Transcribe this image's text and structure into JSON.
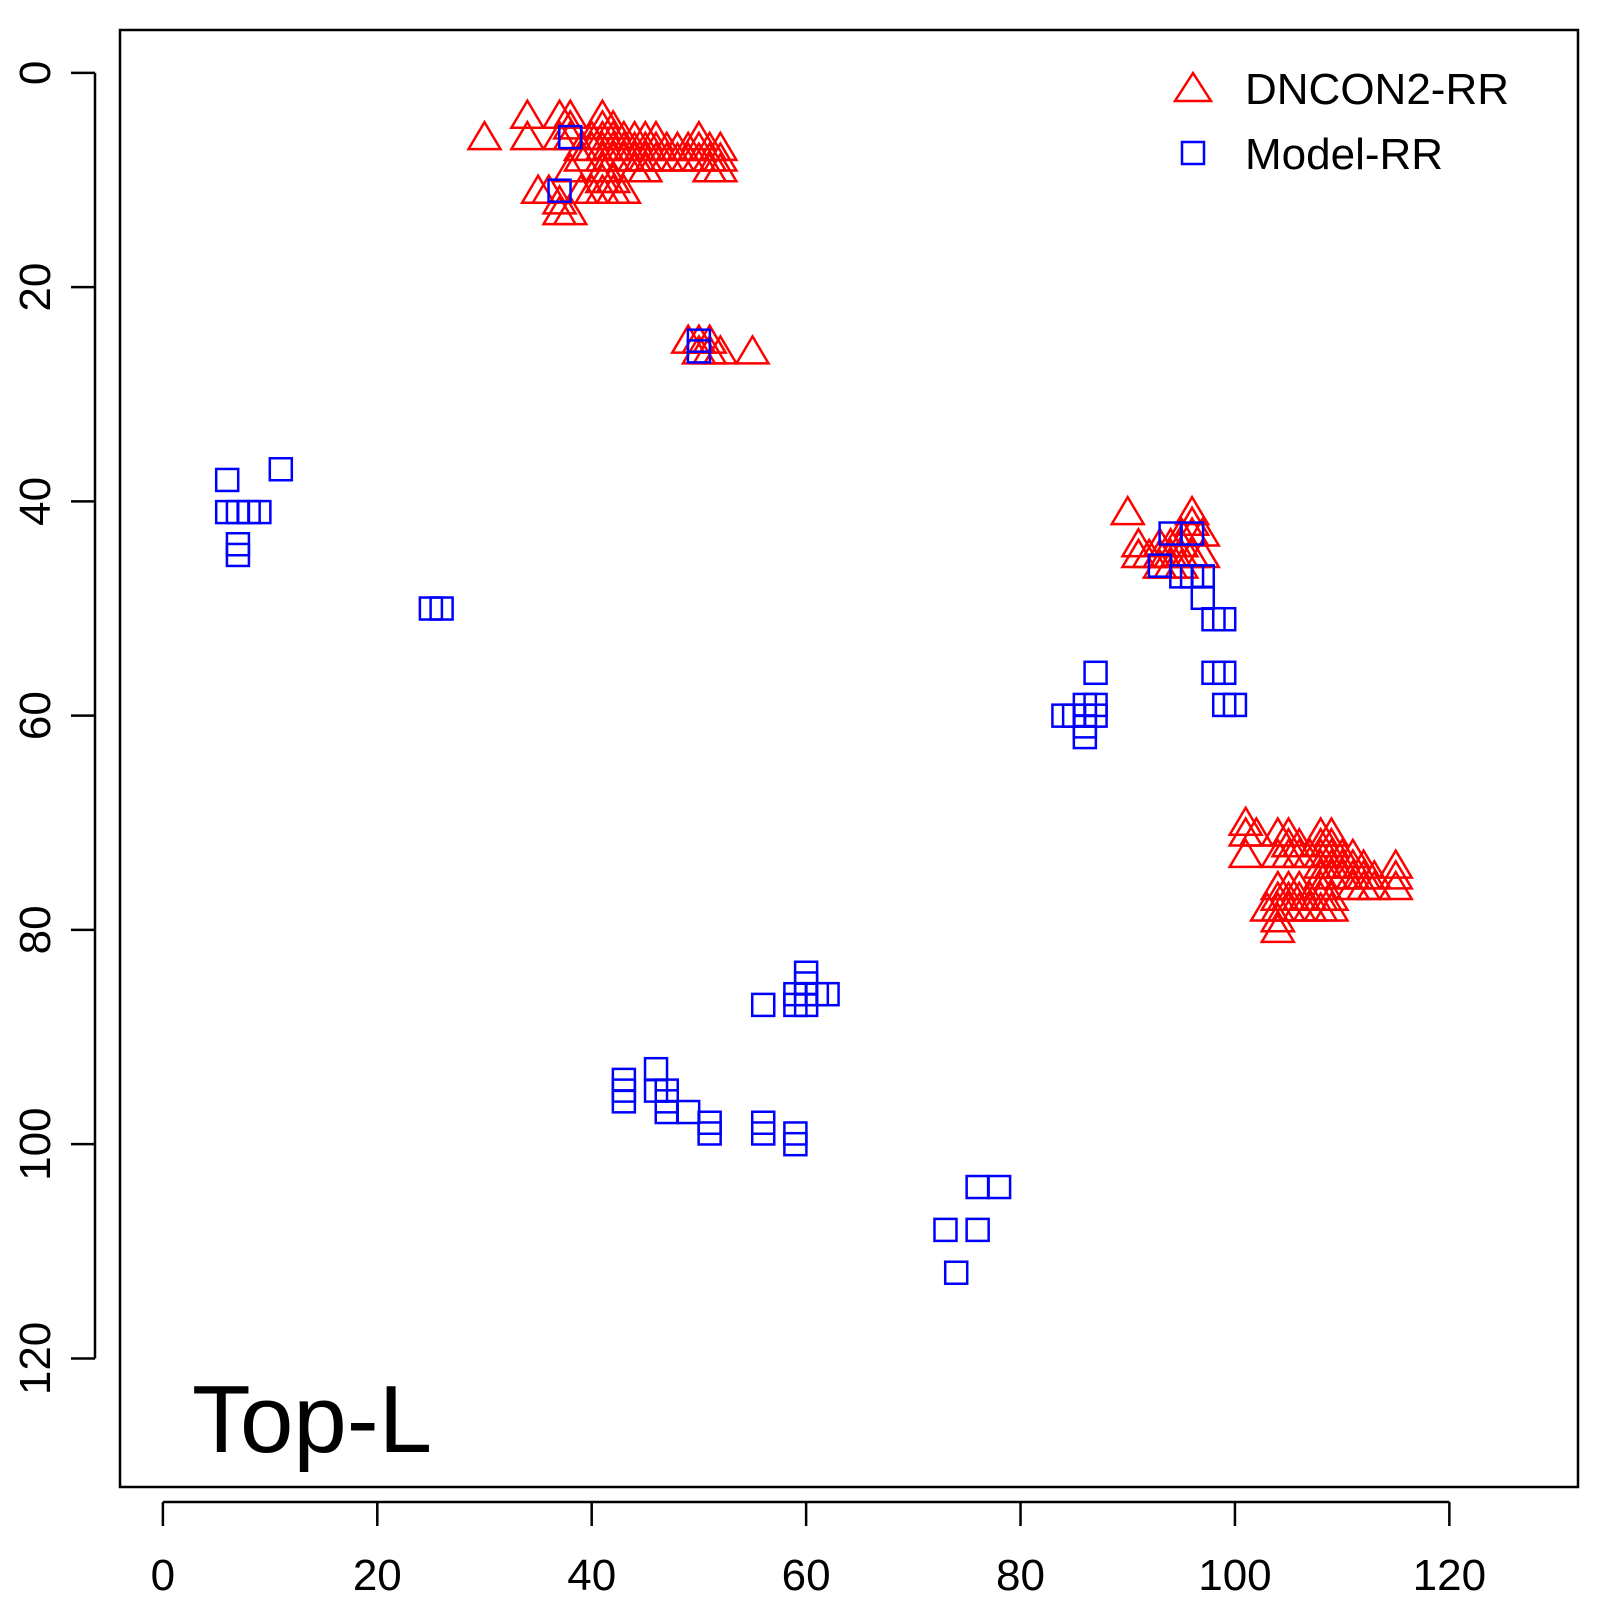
{
  "chart_data": {
    "type": "scatter",
    "panel_label": "Top-L",
    "x_axis": {
      "range": [
        -4,
        132
      ],
      "ticks": [
        0,
        20,
        40,
        60,
        80,
        100,
        120
      ],
      "tick_labels": [
        "0",
        "20",
        "40",
        "60",
        "80",
        "100",
        "120"
      ]
    },
    "y_axis": {
      "range": [
        -4,
        132
      ],
      "reversed": true,
      "ticks": [
        0,
        20,
        40,
        60,
        80,
        100,
        120
      ],
      "tick_labels": [
        "0",
        "20",
        "40",
        "60",
        "80",
        "100",
        "120"
      ]
    },
    "grid": false,
    "legend_position": "top-right",
    "series": [
      {
        "name": "DNCON2-RR",
        "marker": "triangle",
        "color": "#ff0000",
        "points": [
          [
            30,
            6
          ],
          [
            34,
            4
          ],
          [
            34,
            6
          ],
          [
            35,
            11
          ],
          [
            36,
            11
          ],
          [
            37,
            4
          ],
          [
            37,
            6
          ],
          [
            37,
            12
          ],
          [
            37,
            13
          ],
          [
            38,
            4
          ],
          [
            38,
            5
          ],
          [
            38,
            6
          ],
          [
            38,
            9
          ],
          [
            38,
            13
          ],
          [
            39,
            7
          ],
          [
            39,
            8
          ],
          [
            39,
            11
          ],
          [
            40,
            6
          ],
          [
            40,
            7
          ],
          [
            40,
            11
          ],
          [
            41,
            4
          ],
          [
            41,
            5
          ],
          [
            41,
            6
          ],
          [
            41,
            7
          ],
          [
            41,
            8
          ],
          [
            41,
            9
          ],
          [
            41,
            10
          ],
          [
            41,
            11
          ],
          [
            42,
            5
          ],
          [
            42,
            6
          ],
          [
            42,
            7
          ],
          [
            42,
            8
          ],
          [
            42,
            10
          ],
          [
            42,
            11
          ],
          [
            43,
            6
          ],
          [
            43,
            7
          ],
          [
            43,
            8
          ],
          [
            43,
            11
          ],
          [
            44,
            6
          ],
          [
            44,
            7
          ],
          [
            44,
            8
          ],
          [
            44,
            9
          ],
          [
            45,
            6
          ],
          [
            45,
            7
          ],
          [
            45,
            8
          ],
          [
            45,
            9
          ],
          [
            46,
            6
          ],
          [
            46,
            7
          ],
          [
            46,
            8
          ],
          [
            47,
            7
          ],
          [
            47,
            8
          ],
          [
            48,
            7
          ],
          [
            48,
            8
          ],
          [
            49,
            7
          ],
          [
            49,
            8
          ],
          [
            50,
            6
          ],
          [
            50,
            7
          ],
          [
            50,
            8
          ],
          [
            51,
            7
          ],
          [
            51,
            8
          ],
          [
            51,
            9
          ],
          [
            52,
            7
          ],
          [
            52,
            8
          ],
          [
            52,
            9
          ],
          [
            49,
            25
          ],
          [
            50,
            25
          ],
          [
            50,
            26
          ],
          [
            51,
            25
          ],
          [
            51,
            26
          ],
          [
            52,
            26
          ],
          [
            55,
            26
          ],
          [
            90,
            41
          ],
          [
            91,
            44
          ],
          [
            91,
            45
          ],
          [
            92,
            45
          ],
          [
            93,
            44
          ],
          [
            93,
            45
          ],
          [
            93,
            46
          ],
          [
            94,
            44
          ],
          [
            94,
            45
          ],
          [
            94,
            46
          ],
          [
            95,
            43
          ],
          [
            95,
            44
          ],
          [
            95,
            45
          ],
          [
            95,
            46
          ],
          [
            96,
            41
          ],
          [
            96,
            42
          ],
          [
            96,
            43
          ],
          [
            96,
            45
          ],
          [
            97,
            43
          ],
          [
            97,
            45
          ],
          [
            101,
            70
          ],
          [
            101,
            71
          ],
          [
            101,
            73
          ],
          [
            102,
            71
          ],
          [
            103,
            78
          ],
          [
            104,
            71
          ],
          [
            104,
            73
          ],
          [
            104,
            76
          ],
          [
            104,
            77
          ],
          [
            104,
            78
          ],
          [
            104,
            79
          ],
          [
            104,
            80
          ],
          [
            105,
            71
          ],
          [
            105,
            72
          ],
          [
            105,
            73
          ],
          [
            105,
            76
          ],
          [
            105,
            77
          ],
          [
            105,
            78
          ],
          [
            106,
            72
          ],
          [
            106,
            73
          ],
          [
            106,
            76
          ],
          [
            106,
            77
          ],
          [
            106,
            78
          ],
          [
            107,
            73
          ],
          [
            107,
            77
          ],
          [
            107,
            78
          ],
          [
            108,
            71
          ],
          [
            108,
            72
          ],
          [
            108,
            73
          ],
          [
            108,
            74
          ],
          [
            108,
            75
          ],
          [
            108,
            76
          ],
          [
            108,
            77
          ],
          [
            108,
            78
          ],
          [
            109,
            71
          ],
          [
            109,
            72
          ],
          [
            109,
            73
          ],
          [
            109,
            74
          ],
          [
            109,
            75
          ],
          [
            109,
            77
          ],
          [
            109,
            78
          ],
          [
            110,
            73
          ],
          [
            110,
            74
          ],
          [
            110,
            75
          ],
          [
            111,
            73
          ],
          [
            111,
            74
          ],
          [
            111,
            75
          ],
          [
            111,
            76
          ],
          [
            112,
            74
          ],
          [
            112,
            75
          ],
          [
            112,
            76
          ],
          [
            113,
            75
          ],
          [
            113,
            76
          ],
          [
            115,
            74
          ],
          [
            115,
            75
          ],
          [
            115,
            76
          ]
        ]
      },
      {
        "name": "Model-RR",
        "marker": "square",
        "color": "#0000ff",
        "points": [
          [
            6,
            38
          ],
          [
            6,
            41
          ],
          [
            7,
            41
          ],
          [
            7,
            44
          ],
          [
            7,
            45
          ],
          [
            8,
            41
          ],
          [
            9,
            41
          ],
          [
            11,
            37
          ],
          [
            25,
            50
          ],
          [
            26,
            50
          ],
          [
            37,
            11
          ],
          [
            38,
            6
          ],
          [
            50,
            25
          ],
          [
            50,
            26
          ],
          [
            43,
            94
          ],
          [
            43,
            95
          ],
          [
            43,
            96
          ],
          [
            46,
            93
          ],
          [
            46,
            95
          ],
          [
            47,
            95
          ],
          [
            47,
            96
          ],
          [
            47,
            97
          ],
          [
            49,
            97
          ],
          [
            51,
            98
          ],
          [
            51,
            99
          ],
          [
            56,
            87
          ],
          [
            56,
            98
          ],
          [
            56,
            99
          ],
          [
            59,
            86
          ],
          [
            59,
            87
          ],
          [
            59,
            99
          ],
          [
            59,
            100
          ],
          [
            60,
            84
          ],
          [
            60,
            85
          ],
          [
            60,
            86
          ],
          [
            60,
            87
          ],
          [
            61,
            86
          ],
          [
            62,
            86
          ],
          [
            73,
            108
          ],
          [
            74,
            112
          ],
          [
            76,
            104
          ],
          [
            76,
            108
          ],
          [
            78,
            104
          ],
          [
            84,
            60
          ],
          [
            85,
            60
          ],
          [
            86,
            59
          ],
          [
            86,
            60
          ],
          [
            86,
            61
          ],
          [
            86,
            62
          ],
          [
            87,
            56
          ],
          [
            87,
            59
          ],
          [
            87,
            60
          ],
          [
            93,
            46
          ],
          [
            94,
            43
          ],
          [
            95,
            47
          ],
          [
            96,
            43
          ],
          [
            96,
            47
          ],
          [
            97,
            47
          ],
          [
            97,
            49
          ],
          [
            98,
            51
          ],
          [
            98,
            56
          ],
          [
            99,
            51
          ],
          [
            99,
            56
          ],
          [
            99,
            59
          ],
          [
            100,
            59
          ]
        ]
      }
    ]
  }
}
